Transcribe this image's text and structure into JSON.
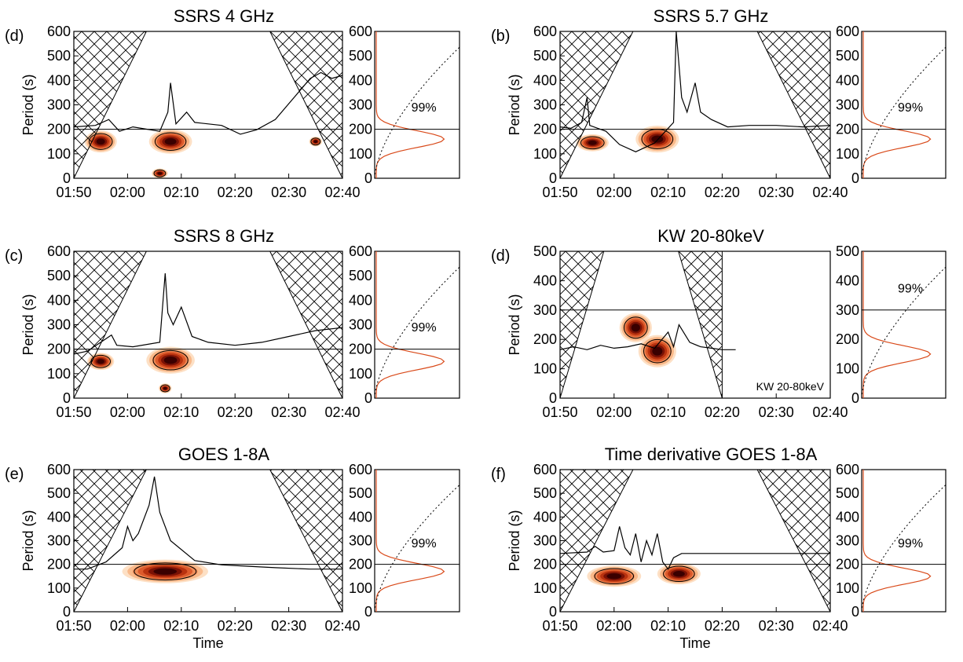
{
  "figure": {
    "time_ticks": [
      "01:50",
      "02:00",
      "02:10",
      "02:20",
      "02:30",
      "02:40"
    ],
    "xlabel": "Time",
    "ylabel": "Period (s)",
    "significance_label": "99%",
    "colormap": [
      "#fde0c5",
      "#f9b98a",
      "#f08c58",
      "#dd5b2c",
      "#b8320f",
      "#7a1205",
      "#3a0000"
    ],
    "spectrum_color": "#d94a1a"
  },
  "chart_data": [
    {
      "type": "heatmap",
      "panel": "(d)",
      "title": "SSRS 4 GHz",
      "ylabel": "Period (s)",
      "xlabel": "",
      "x_range": [
        "01:50",
        "02:40"
      ],
      "ylim": [
        0,
        600
      ],
      "yticks": [
        0,
        100,
        200,
        300,
        400,
        500,
        600
      ],
      "reference_period": 200,
      "power_blobs": [
        {
          "time": "01:55",
          "period": 150,
          "width_min": 3,
          "height_s": 45
        },
        {
          "time": "02:08",
          "period": 150,
          "width_min": 4,
          "height_s": 50
        },
        {
          "time": "02:06",
          "period": 20,
          "width_min": 1.5,
          "height_s": 20
        },
        {
          "time": "02:35",
          "period": 150,
          "width_min": 1.2,
          "height_s": 20
        }
      ],
      "global_spectrum": {
        "peak_period": 160,
        "xlim": [
          0,
          1
        ]
      },
      "significance_label": "99%"
    },
    {
      "type": "heatmap",
      "panel": "(b)",
      "title": "SSRS 5.7 GHz",
      "ylabel": "Period (s)",
      "xlabel": "",
      "x_range": [
        "01:50",
        "02:40"
      ],
      "ylim": [
        0,
        600
      ],
      "yticks": [
        0,
        100,
        200,
        300,
        400,
        500,
        600
      ],
      "reference_period": 200,
      "power_blobs": [
        {
          "time": "01:56",
          "period": 145,
          "width_min": 3,
          "height_s": 35
        },
        {
          "time": "02:08",
          "period": 160,
          "width_min": 4,
          "height_s": 55
        }
      ],
      "global_spectrum": {
        "peak_period": 160,
        "xlim": [
          0,
          1
        ]
      },
      "significance_label": "99%"
    },
    {
      "type": "heatmap",
      "panel": "(c)",
      "title": "SSRS 8 GHz",
      "ylabel": "Period (s)",
      "xlabel": "",
      "x_range": [
        "01:50",
        "02:40"
      ],
      "ylim": [
        0,
        600
      ],
      "yticks": [
        0,
        100,
        200,
        300,
        400,
        500,
        600
      ],
      "reference_period": 200,
      "power_blobs": [
        {
          "time": "01:55",
          "period": 150,
          "width_min": 2.5,
          "height_s": 35
        },
        {
          "time": "02:08",
          "period": 155,
          "width_min": 4.5,
          "height_s": 55
        },
        {
          "time": "02:07",
          "period": 40,
          "width_min": 1.2,
          "height_s": 20
        }
      ],
      "global_spectrum": {
        "peak_period": 150,
        "xlim": [
          0,
          1
        ]
      },
      "significance_label": "99%"
    },
    {
      "type": "heatmap",
      "panel": "(d)",
      "title": "KW 20-80keV",
      "ylabel": "Period (s)",
      "xlabel": "",
      "x_range": [
        "01:50",
        "02:40"
      ],
      "ylim": [
        0,
        500
      ],
      "yticks": [
        0,
        100,
        200,
        300,
        400,
        500
      ],
      "reference_period": 300,
      "data_end": "02:20",
      "inset_label": "KW 20-80keV",
      "power_blobs": [
        {
          "time": "02:08",
          "period": 160,
          "width_min": 3.5,
          "height_s": 55
        },
        {
          "time": "02:04",
          "period": 240,
          "width_min": 3,
          "height_s": 50
        }
      ],
      "global_spectrum": {
        "peak_period": 150,
        "xlim": [
          0,
          1
        ]
      },
      "significance_label": "99%"
    },
    {
      "type": "heatmap",
      "panel": "(e)",
      "title": "GOES 1-8A",
      "ylabel": "Period (s)",
      "xlabel": "Time",
      "x_range": [
        "01:50",
        "02:40"
      ],
      "ylim": [
        0,
        600
      ],
      "yticks": [
        0,
        100,
        200,
        300,
        400,
        500,
        600
      ],
      "reference_period": 200,
      "power_blobs": [
        {
          "time": "02:07",
          "period": 170,
          "width_min": 8,
          "height_s": 50
        }
      ],
      "global_spectrum": {
        "peak_period": 170,
        "xlim": [
          0,
          1
        ]
      },
      "significance_label": "99%"
    },
    {
      "type": "heatmap",
      "panel": "(f)",
      "title": "Time derivative GOES 1-8A",
      "ylabel": "Period (s)",
      "xlabel": "Time",
      "x_range": [
        "01:50",
        "02:40"
      ],
      "ylim": [
        0,
        600
      ],
      "yticks": [
        0,
        100,
        200,
        300,
        400,
        500,
        600
      ],
      "reference_period": 200,
      "power_blobs": [
        {
          "time": "02:00",
          "period": 150,
          "width_min": 5,
          "height_s": 45
        },
        {
          "time": "02:12",
          "period": 160,
          "width_min": 4,
          "height_s": 45
        }
      ],
      "global_spectrum": {
        "peak_period": 150,
        "xlim": [
          0,
          1
        ]
      },
      "significance_label": "99%"
    }
  ]
}
